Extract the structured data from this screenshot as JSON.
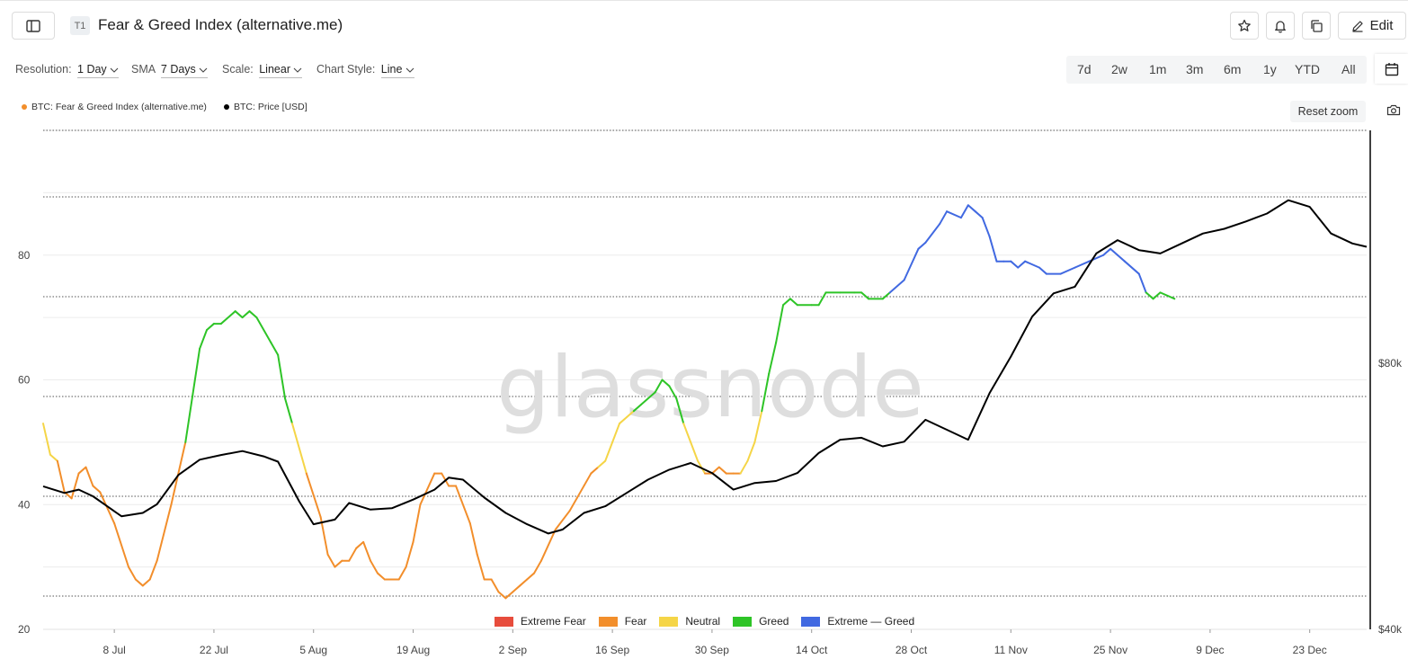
{
  "header": {
    "tag": "T1",
    "title": "Fear & Greed Index (alternative.me)",
    "edit_label": "Edit"
  },
  "controls": {
    "resolution_label": "Resolution:",
    "resolution_value": "1 Day",
    "sma_label": "SMA",
    "sma_value": "7 Days",
    "scale_label": "Scale:",
    "scale_value": "Linear",
    "style_label": "Chart Style:",
    "style_value": "Line"
  },
  "ranges": [
    "7d",
    "2w",
    "1m",
    "3m",
    "6m",
    "1y",
    "YTD",
    "All"
  ],
  "reset_zoom_label": "Reset zoom",
  "watermark": "glassnode",
  "colors": {
    "extreme_fear": "#e74c3c",
    "fear": "#f28e2b",
    "neutral": "#f5d547",
    "greed": "#2ec427",
    "extreme_greed": "#4169e1",
    "price": "#000000"
  },
  "chart_data": {
    "type": "line",
    "x_start": "2024-06-28",
    "x_end": "2024-12-31",
    "xticks": [
      {
        "date": "2024-07-08",
        "label": "8 Jul"
      },
      {
        "date": "2024-07-22",
        "label": "22 Jul"
      },
      {
        "date": "2024-08-05",
        "label": "5 Aug"
      },
      {
        "date": "2024-08-19",
        "label": "19 Aug"
      },
      {
        "date": "2024-09-02",
        "label": "2 Sep"
      },
      {
        "date": "2024-09-16",
        "label": "16 Sep"
      },
      {
        "date": "2024-09-30",
        "label": "30 Sep"
      },
      {
        "date": "2024-10-14",
        "label": "14 Oct"
      },
      {
        "date": "2024-10-28",
        "label": "28 Oct"
      },
      {
        "date": "2024-11-11",
        "label": "11 Nov"
      },
      {
        "date": "2024-11-25",
        "label": "25 Nov"
      },
      {
        "date": "2024-12-09",
        "label": "9 Dec"
      },
      {
        "date": "2024-12-23",
        "label": "23 Dec"
      }
    ],
    "y_left": {
      "ticks": [
        20,
        40,
        60,
        80
      ],
      "labels": [
        "20",
        "40",
        "60",
        "80"
      ],
      "range": [
        20,
        100
      ]
    },
    "y_right": {
      "ticks": [
        40000,
        80000
      ],
      "labels": [
        "$40k",
        "$80k"
      ],
      "range": [
        40000,
        115000
      ]
    },
    "series": [
      {
        "name": "BTC: Fear & Greed Index (alternative.me)",
        "axis": "left",
        "color_by_zone": true,
        "values": [
          [
            "2024-06-28",
            53
          ],
          [
            "2024-06-29",
            48
          ],
          [
            "2024-06-30",
            47
          ],
          [
            "2024-07-01",
            42
          ],
          [
            "2024-07-02",
            41
          ],
          [
            "2024-07-03",
            45
          ],
          [
            "2024-07-04",
            46
          ],
          [
            "2024-07-05",
            43
          ],
          [
            "2024-07-06",
            42
          ],
          [
            "2024-07-08",
            37
          ],
          [
            "2024-07-10",
            30
          ],
          [
            "2024-07-11",
            28
          ],
          [
            "2024-07-12",
            27
          ],
          [
            "2024-07-13",
            28
          ],
          [
            "2024-07-14",
            31
          ],
          [
            "2024-07-16",
            40
          ],
          [
            "2024-07-18",
            50
          ],
          [
            "2024-07-20",
            65
          ],
          [
            "2024-07-21",
            68
          ],
          [
            "2024-07-22",
            69
          ],
          [
            "2024-07-23",
            69
          ],
          [
            "2024-07-25",
            71
          ],
          [
            "2024-07-26",
            70
          ],
          [
            "2024-07-27",
            71
          ],
          [
            "2024-07-28",
            70
          ],
          [
            "2024-07-30",
            66
          ],
          [
            "2024-07-31",
            64
          ],
          [
            "2024-08-01",
            57
          ],
          [
            "2024-08-02",
            53
          ],
          [
            "2024-08-04",
            45
          ],
          [
            "2024-08-06",
            38
          ],
          [
            "2024-08-07",
            32
          ],
          [
            "2024-08-08",
            30
          ],
          [
            "2024-08-09",
            31
          ],
          [
            "2024-08-10",
            31
          ],
          [
            "2024-08-11",
            33
          ],
          [
            "2024-08-12",
            34
          ],
          [
            "2024-08-13",
            31
          ],
          [
            "2024-08-14",
            29
          ],
          [
            "2024-08-15",
            28
          ],
          [
            "2024-08-16",
            28
          ],
          [
            "2024-08-17",
            28
          ],
          [
            "2024-08-18",
            30
          ],
          [
            "2024-08-19",
            34
          ],
          [
            "2024-08-20",
            40
          ],
          [
            "2024-08-22",
            45
          ],
          [
            "2024-08-23",
            45
          ],
          [
            "2024-08-24",
            43
          ],
          [
            "2024-08-25",
            43
          ],
          [
            "2024-08-27",
            37
          ],
          [
            "2024-08-28",
            32
          ],
          [
            "2024-08-29",
            28
          ],
          [
            "2024-08-30",
            28
          ],
          [
            "2024-08-31",
            26
          ],
          [
            "2024-09-01",
            25
          ],
          [
            "2024-09-02",
            26
          ],
          [
            "2024-09-03",
            27
          ],
          [
            "2024-09-04",
            28
          ],
          [
            "2024-09-05",
            29
          ],
          [
            "2024-09-06",
            31
          ],
          [
            "2024-09-08",
            36
          ],
          [
            "2024-09-10",
            39
          ],
          [
            "2024-09-11",
            41
          ],
          [
            "2024-09-12",
            43
          ],
          [
            "2024-09-13",
            45
          ],
          [
            "2024-09-14",
            46
          ],
          [
            "2024-09-15",
            47
          ],
          [
            "2024-09-16",
            50
          ],
          [
            "2024-09-17",
            53
          ],
          [
            "2024-09-18",
            54
          ],
          [
            "2024-09-19",
            55
          ],
          [
            "2024-09-20",
            56
          ],
          [
            "2024-09-22",
            58
          ],
          [
            "2024-09-23",
            60
          ],
          [
            "2024-09-24",
            59
          ],
          [
            "2024-09-25",
            57
          ],
          [
            "2024-09-26",
            53
          ],
          [
            "2024-09-27",
            50
          ],
          [
            "2024-09-28",
            47
          ],
          [
            "2024-09-29",
            45
          ],
          [
            "2024-09-30",
            45
          ],
          [
            "2024-10-01",
            46
          ],
          [
            "2024-10-02",
            45
          ],
          [
            "2024-10-03",
            45
          ],
          [
            "2024-10-04",
            45
          ],
          [
            "2024-10-05",
            47
          ],
          [
            "2024-10-06",
            50
          ],
          [
            "2024-10-07",
            55
          ],
          [
            "2024-10-08",
            61
          ],
          [
            "2024-10-09",
            66
          ],
          [
            "2024-10-10",
            72
          ],
          [
            "2024-10-11",
            73
          ],
          [
            "2024-10-12",
            72
          ],
          [
            "2024-10-14",
            72
          ],
          [
            "2024-10-15",
            72
          ],
          [
            "2024-10-16",
            74
          ],
          [
            "2024-10-18",
            74
          ],
          [
            "2024-10-20",
            74
          ],
          [
            "2024-10-21",
            74
          ],
          [
            "2024-10-22",
            73
          ],
          [
            "2024-10-24",
            73
          ],
          [
            "2024-10-25",
            74
          ],
          [
            "2024-10-27",
            76
          ],
          [
            "2024-10-29",
            81
          ],
          [
            "2024-10-30",
            82
          ],
          [
            "2024-11-01",
            85
          ],
          [
            "2024-11-02",
            87
          ],
          [
            "2024-11-04",
            86
          ],
          [
            "2024-11-05",
            88
          ],
          [
            "2024-11-06",
            87
          ],
          [
            "2024-11-07",
            86
          ],
          [
            "2024-11-08",
            83
          ],
          [
            "2024-11-09",
            79
          ],
          [
            "2024-11-10",
            79
          ],
          [
            "2024-11-11",
            79
          ],
          [
            "2024-11-12",
            78
          ],
          [
            "2024-11-13",
            79
          ],
          [
            "2024-11-15",
            78
          ],
          [
            "2024-11-16",
            77
          ],
          [
            "2024-11-18",
            77
          ],
          [
            "2024-11-20",
            78
          ],
          [
            "2024-11-22",
            79
          ],
          [
            "2024-11-24",
            80
          ],
          [
            "2024-11-25",
            81
          ],
          [
            "2024-11-26",
            80
          ],
          [
            "2024-11-27",
            79
          ],
          [
            "2024-11-29",
            77
          ],
          [
            "2024-11-30",
            74
          ],
          [
            "2024-12-01",
            73
          ],
          [
            "2024-12-02",
            74
          ],
          [
            "2024-12-04",
            73
          ]
        ]
      },
      {
        "name": "BTC: Price [USD]",
        "axis": "right",
        "color": "#000000",
        "values": [
          [
            "2024-06-28",
            61500
          ],
          [
            "2024-07-01",
            60500
          ],
          [
            "2024-07-03",
            61000
          ],
          [
            "2024-07-05",
            60000
          ],
          [
            "2024-07-07",
            58500
          ],
          [
            "2024-07-09",
            57000
          ],
          [
            "2024-07-12",
            57500
          ],
          [
            "2024-07-14",
            58800
          ],
          [
            "2024-07-17",
            63200
          ],
          [
            "2024-07-20",
            65500
          ],
          [
            "2024-07-23",
            66200
          ],
          [
            "2024-07-26",
            66800
          ],
          [
            "2024-07-29",
            66000
          ],
          [
            "2024-07-31",
            65200
          ],
          [
            "2024-08-03",
            59200
          ],
          [
            "2024-08-05",
            55800
          ],
          [
            "2024-08-08",
            56500
          ],
          [
            "2024-08-10",
            59000
          ],
          [
            "2024-08-13",
            58000
          ],
          [
            "2024-08-16",
            58200
          ],
          [
            "2024-08-19",
            59500
          ],
          [
            "2024-08-22",
            61000
          ],
          [
            "2024-08-24",
            62800
          ],
          [
            "2024-08-26",
            62500
          ],
          [
            "2024-08-29",
            59800
          ],
          [
            "2024-09-01",
            57500
          ],
          [
            "2024-09-04",
            55800
          ],
          [
            "2024-09-07",
            54400
          ],
          [
            "2024-09-09",
            55000
          ],
          [
            "2024-09-12",
            57500
          ],
          [
            "2024-09-15",
            58500
          ],
          [
            "2024-09-18",
            60500
          ],
          [
            "2024-09-21",
            62500
          ],
          [
            "2024-09-24",
            64000
          ],
          [
            "2024-09-27",
            65000
          ],
          [
            "2024-09-30",
            63500
          ],
          [
            "2024-10-03",
            61000
          ],
          [
            "2024-10-06",
            62000
          ],
          [
            "2024-10-09",
            62300
          ],
          [
            "2024-10-12",
            63500
          ],
          [
            "2024-10-15",
            66500
          ],
          [
            "2024-10-18",
            68500
          ],
          [
            "2024-10-21",
            68800
          ],
          [
            "2024-10-24",
            67500
          ],
          [
            "2024-10-27",
            68200
          ],
          [
            "2024-10-30",
            71500
          ],
          [
            "2024-11-02",
            70000
          ],
          [
            "2024-11-05",
            68500
          ],
          [
            "2024-11-08",
            75500
          ],
          [
            "2024-11-11",
            81000
          ],
          [
            "2024-11-14",
            87000
          ],
          [
            "2024-11-17",
            90500
          ],
          [
            "2024-11-20",
            91500
          ],
          [
            "2024-11-23",
            96500
          ],
          [
            "2024-11-26",
            98500
          ],
          [
            "2024-11-29",
            97000
          ],
          [
            "2024-12-02",
            96500
          ],
          [
            "2024-12-05",
            98000
          ],
          [
            "2024-12-08",
            99500
          ],
          [
            "2024-12-11",
            100200
          ],
          [
            "2024-12-14",
            101300
          ],
          [
            "2024-12-17",
            102500
          ],
          [
            "2024-12-20",
            104500
          ],
          [
            "2024-12-23",
            103500
          ],
          [
            "2024-12-26",
            99500
          ],
          [
            "2024-12-29",
            98000
          ],
          [
            "2024-12-31",
            97500
          ]
        ]
      }
    ],
    "zones": [
      {
        "name": "Extreme Fear",
        "from": 0,
        "to": 25
      },
      {
        "name": "Fear",
        "from": 25,
        "to": 46
      },
      {
        "name": "Neutral",
        "from": 46,
        "to": 55
      },
      {
        "name": "Greed",
        "from": 55,
        "to": 75
      },
      {
        "name": "Extreme — Greed",
        "from": 75,
        "to": 100
      }
    ],
    "legend": [
      "Extreme Fear",
      "Fear",
      "Neutral",
      "Greed",
      "Extreme — Greed"
    ]
  }
}
